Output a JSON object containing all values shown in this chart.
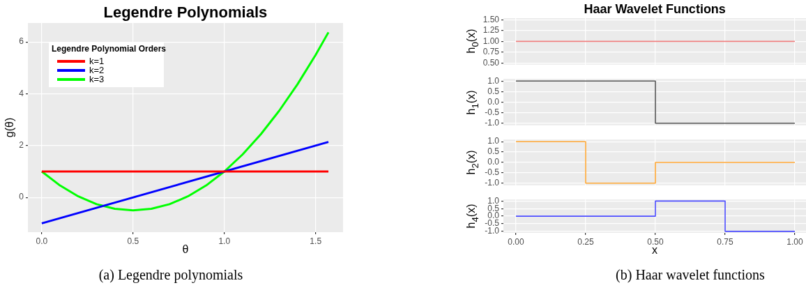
{
  "chart_data": [
    {
      "type": "line",
      "title": "Legendre Polynomials",
      "xlabel": "θ",
      "ylabel": "g(θ)",
      "legend_title": "Legendre Polynomial Orders",
      "legend": "top left",
      "grid": true,
      "marker": "none",
      "line_style": "solid",
      "xlim": [
        -0.076,
        1.65
      ],
      "xticks": [
        {
          "value": 0,
          "label": "0.0"
        },
        {
          "value": 0.5,
          "label": "0.5"
        },
        {
          "value": 1,
          "label": "1.0"
        },
        {
          "value": 1.5,
          "label": "1.5"
        }
      ],
      "ylim": [
        -1.34,
        6.73
      ],
      "yticks": [
        0,
        2,
        4,
        6
      ],
      "series": [
        {
          "name": "k=1",
          "color": "#ff0000",
          "x": [
            0,
            1.57
          ],
          "values": [
            1,
            1
          ]
        },
        {
          "name": "k=2",
          "color": "#0000ff",
          "x": [
            0,
            1.57
          ],
          "values": [
            -1,
            2.14
          ]
        },
        {
          "name": "k=3",
          "color": "#00ff00",
          "x": [
            0,
            0.1,
            0.2,
            0.3,
            0.4,
            0.5,
            0.6,
            0.7,
            0.8,
            0.9,
            1.0,
            1.1,
            1.2,
            1.3,
            1.4,
            1.5,
            1.57
          ],
          "values": [
            1,
            0.46,
            0.04,
            -0.26,
            -0.44,
            -0.5,
            -0.44,
            -0.26,
            0.04,
            0.46,
            1,
            1.66,
            2.44,
            3.34,
            4.36,
            5.5,
            6.37
          ]
        }
      ],
      "annotations": [
        "(a) Legendre polynomials"
      ]
    },
    {
      "type": "step",
      "title": "Haar Wavelet Functions",
      "ylabel": "h$_{0}$(x)",
      "grid": true,
      "marker": "none",
      "tick_labels": "y",
      "xlim": [
        -0.045,
        1.04
      ],
      "ylim": [
        0.46,
        1.54
      ],
      "yticks": [
        {
          "value": 0.5,
          "label": "0.50"
        },
        {
          "value": 0.75,
          "label": "0.75"
        },
        {
          "value": 1,
          "label": "1.00"
        },
        {
          "value": 1.25,
          "label": "1.25"
        },
        {
          "value": 1.5,
          "label": "1.50"
        }
      ],
      "series": [
        {
          "color": "#f08080",
          "x": [
            0,
            1
          ],
          "values": [
            1,
            1
          ]
        }
      ]
    },
    {
      "type": "step",
      "ylabel": "h$_{1}$(x)",
      "grid": true,
      "marker": "none",
      "tick_labels": "y",
      "xlim": [
        -0.045,
        1.04
      ],
      "ylim": [
        -1.1,
        1.1
      ],
      "yticks": [
        {
          "value": -1,
          "label": "-1.0"
        },
        {
          "value": -0.5,
          "label": "-0.5"
        },
        {
          "value": 0,
          "label": "0.0"
        },
        {
          "value": 0.5,
          "label": "0.5"
        },
        {
          "value": 1,
          "label": "1.0"
        }
      ],
      "series": [
        {
          "color": "#555555",
          "x": [
            0,
            0.5,
            1
          ],
          "values": [
            1,
            -1,
            -1
          ]
        }
      ]
    },
    {
      "type": "step",
      "ylabel": "h$_{2}$(x)",
      "grid": true,
      "marker": "none",
      "tick_labels": "y",
      "xlim": [
        -0.045,
        1.04
      ],
      "ylim": [
        -1.1,
        1.1
      ],
      "yticks": [
        {
          "value": -1,
          "label": "-1.0"
        },
        {
          "value": -0.5,
          "label": "-0.5"
        },
        {
          "value": 0,
          "label": "0.0"
        },
        {
          "value": 0.5,
          "label": "0.5"
        },
        {
          "value": 1,
          "label": "1.0"
        }
      ],
      "series": [
        {
          "color": "#ffa733",
          "x": [
            0,
            0.25,
            0.5,
            1
          ],
          "values": [
            1,
            -1,
            0,
            0
          ]
        }
      ]
    },
    {
      "type": "step",
      "ylabel": "h$_{4}$(x)",
      "xlabel": "x",
      "grid": true,
      "marker": "none",
      "xlim": [
        -0.045,
        1.04
      ],
      "xticks": [
        {
          "value": 0,
          "label": "0.00"
        },
        {
          "value": 0.25,
          "label": "0.25"
        },
        {
          "value": 0.5,
          "label": "0.50"
        },
        {
          "value": 0.75,
          "label": "0.75"
        },
        {
          "value": 1,
          "label": "1.00"
        }
      ],
      "ylim": [
        -1.1,
        1.1
      ],
      "yticks": [
        {
          "value": -1,
          "label": "-1.0"
        },
        {
          "value": -0.5,
          "label": "-0.5"
        },
        {
          "value": 0,
          "label": "0.0"
        },
        {
          "value": 0.5,
          "label": "0.5"
        },
        {
          "value": 1,
          "label": "1.0"
        }
      ],
      "series": [
        {
          "color": "#4b4bff",
          "x": [
            0,
            0.5,
            0.75,
            1
          ],
          "values": [
            0,
            1,
            -1,
            -1
          ]
        }
      ],
      "annotations": [
        "(b) Haar wavelet functions"
      ]
    }
  ]
}
